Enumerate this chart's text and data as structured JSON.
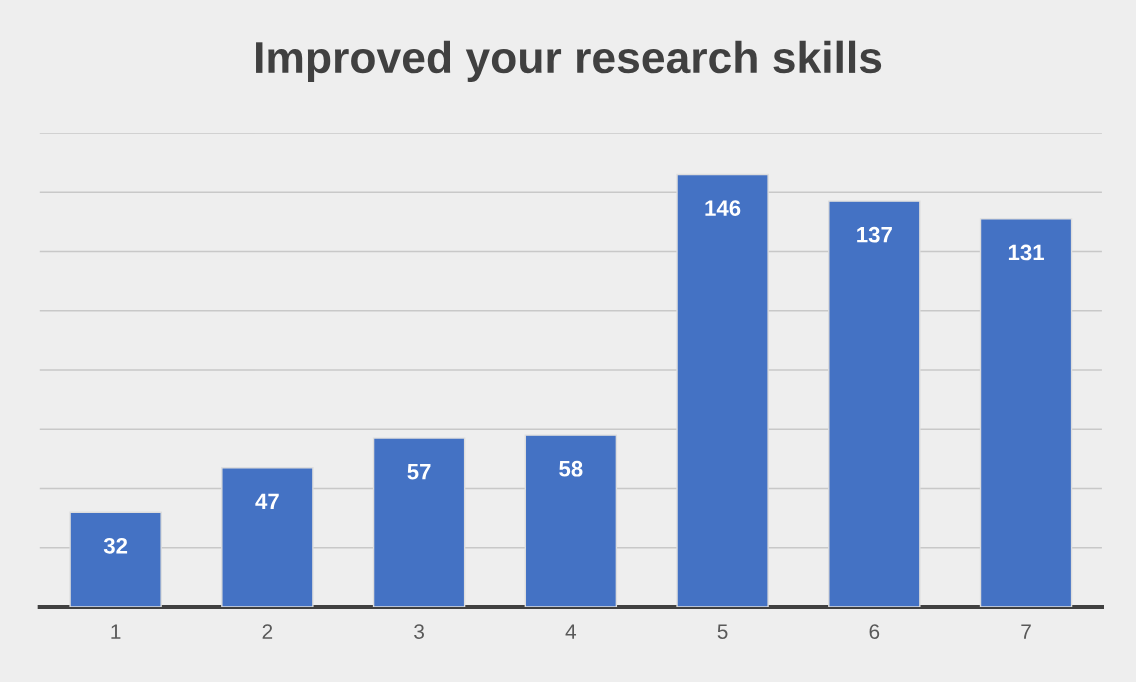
{
  "chart_data": {
    "type": "bar",
    "title": "Improved your research skills",
    "categories": [
      "1",
      "2",
      "3",
      "4",
      "5",
      "6",
      "7"
    ],
    "values": [
      32,
      47,
      57,
      58,
      146,
      137,
      131
    ],
    "color": "#4472c4",
    "ylim": [
      0,
      160
    ],
    "yticks": [
      {
        "value": 0,
        "label": null
      },
      {
        "value": 20,
        "label": null
      },
      {
        "value": 40,
        "label": null
      },
      {
        "value": 60,
        "label": null
      },
      {
        "value": 80,
        "label": null
      },
      {
        "value": 100,
        "label": null
      },
      {
        "value": 120,
        "label": null
      },
      {
        "value": 140,
        "label": null
      },
      {
        "value": 160,
        "label": null
      }
    ],
    "grid": "y",
    "tick_labels": "x",
    "data_labels": true
  }
}
